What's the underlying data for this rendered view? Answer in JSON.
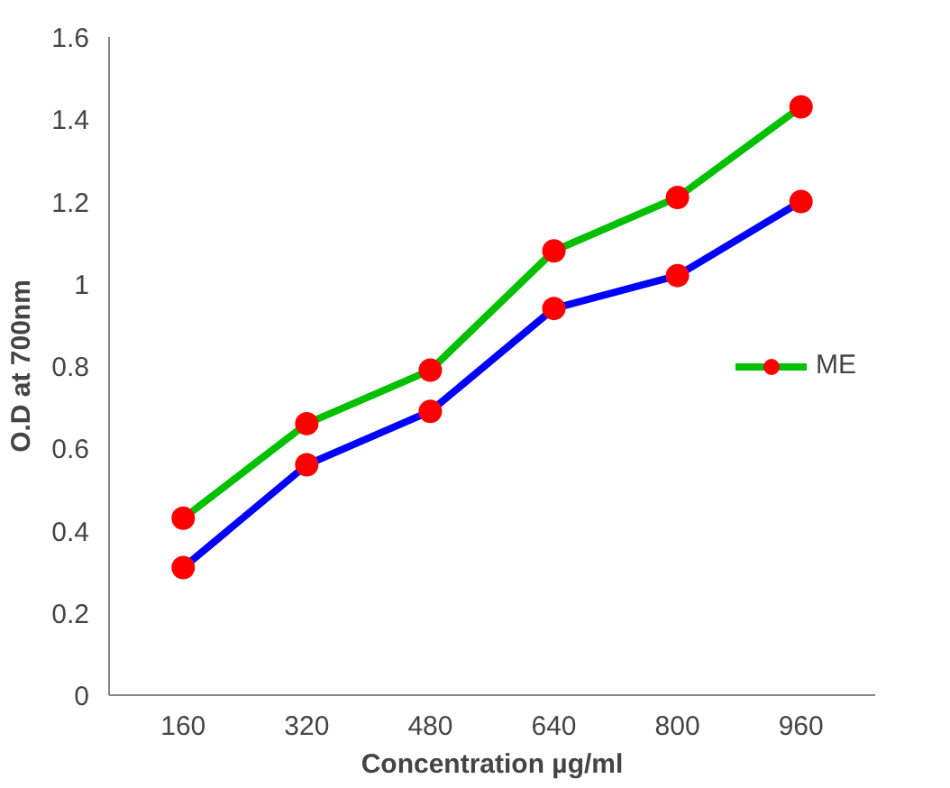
{
  "chart_data": {
    "type": "line",
    "xlabel": "Concentration µg/ml",
    "ylabel": "O.D at 700nm",
    "categories": [
      "160",
      "320",
      "480",
      "640",
      "800",
      "960"
    ],
    "series": [
      {
        "name": "ME",
        "color": "#00c000",
        "colors": [
          "#ff0000",
          "#ff0000",
          "#ff0000",
          "#ff0000",
          "#ff0000",
          "#ff0000"
        ],
        "values": [
          0.43,
          0.66,
          0.79,
          1.08,
          1.21,
          1.43
        ]
      },
      {
        "color": "#0000ff",
        "colors": [
          "#ff0000",
          "#ff0000",
          "#ff0000",
          "#ff0000",
          "#ff0000",
          "#ff0000"
        ],
        "values": [
          0.31,
          0.56,
          0.69,
          0.94,
          1.02,
          1.2
        ]
      }
    ],
    "ylim": [
      0,
      1.6
    ],
    "yticks": [
      0,
      0.2,
      0.4,
      0.6,
      0.8,
      1,
      1.2,
      1.4,
      1.6
    ],
    "grid": false,
    "legend": "right",
    "marker": "circle",
    "line_style": "solid"
  }
}
